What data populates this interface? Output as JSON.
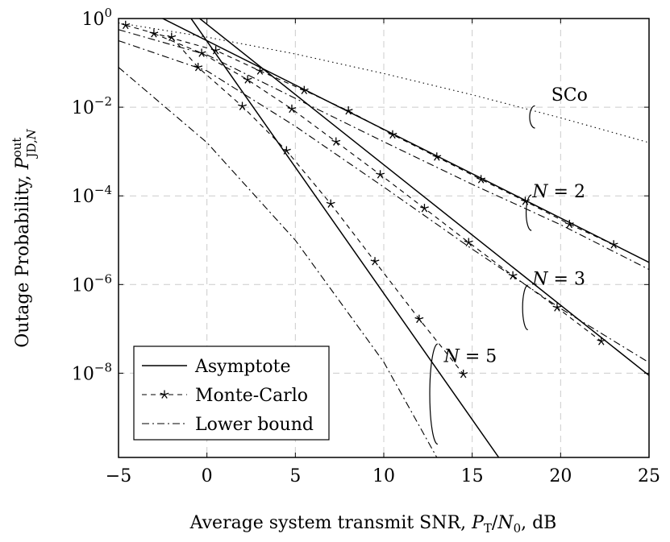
{
  "chart_data": {
    "type": "line",
    "xlabel": "Average system transmit SNR, P_T/N_0, dB",
    "xlabel_parts": {
      "prefix": "Average system transmit SNR, ",
      "p": "P",
      "p_sub": "T",
      "slash": "/",
      "n": "N",
      "n_sub": "0",
      "suffix": ", dB"
    },
    "ylabel": "Outage Probability, P_{JD,N}^{out}",
    "ylabel_parts": {
      "prefix": "Outage Probability, ",
      "p": "P",
      "sup": "out",
      "sub": "JD,",
      "sub_n": "N"
    },
    "xlim": [
      -5,
      25
    ],
    "ylim_log10": [
      -9.9,
      0
    ],
    "y_scale": "log",
    "grid": true,
    "x_ticks": [
      -5,
      0,
      5,
      10,
      15,
      20,
      25
    ],
    "x_tick_labels": [
      "−5",
      "0",
      "5",
      "10",
      "15",
      "20",
      "25"
    ],
    "y_ticks_log10": [
      0,
      -2,
      -4,
      -6,
      -8
    ],
    "y_tick_labels": [
      {
        "base": "10",
        "exp": "0"
      },
      {
        "base": "10",
        "exp": "−2"
      },
      {
        "base": "10",
        "exp": "−4"
      },
      {
        "base": "10",
        "exp": "−6"
      },
      {
        "base": "10",
        "exp": "−8"
      }
    ],
    "legend": {
      "position": "bottom-left",
      "entries": [
        {
          "label": "Asymptote",
          "style": "solid"
        },
        {
          "label": "Monte-Carlo",
          "style": "dashed-star"
        },
        {
          "label": "Lower bound",
          "style": "dashdot"
        }
      ]
    },
    "series": [
      {
        "name": "SCo",
        "style": "dotted",
        "x": [
          -5,
          0,
          5,
          10,
          15,
          20,
          25
        ],
        "log10_y": [
          -0.1,
          -0.42,
          -0.8,
          -1.24,
          -1.72,
          -2.24,
          -2.8
        ]
      },
      {
        "name": "Asymptote N=2",
        "style": "solid",
        "x": [
          -3,
          25
        ],
        "log10_y": [
          0.1,
          -5.5
        ]
      },
      {
        "name": "Asymptote N=3",
        "style": "solid",
        "x": [
          -0.6,
          25
        ],
        "log10_y": [
          0.06,
          -8.05
        ]
      },
      {
        "name": "Asymptote N=5",
        "style": "solid",
        "x": [
          -1.6,
          16.5
        ],
        "log10_y": [
          0.4,
          -9.9
        ]
      },
      {
        "name": "Monte-Carlo N=2",
        "style": "dashed-star",
        "x": [
          -4.6,
          0.5,
          3,
          5.5,
          8,
          10.5,
          13,
          15.5,
          18,
          20.5,
          23
        ],
        "log10_y": [
          -0.15,
          -0.72,
          -1.18,
          -1.62,
          -2.08,
          -2.62,
          -3.12,
          -3.63,
          -4.12,
          -4.64,
          -5.1
        ]
      },
      {
        "name": "Monte-Carlo N=3",
        "style": "dashed-star",
        "x": [
          -3,
          -0.3,
          2.3,
          4.8,
          7.3,
          9.8,
          12.3,
          14.8,
          17.3,
          19.8,
          22.3
        ],
        "log10_y": [
          -0.34,
          -0.78,
          -1.38,
          -2.04,
          -2.78,
          -3.52,
          -4.28,
          -5.05,
          -5.8,
          -6.52,
          -7.28
        ]
      },
      {
        "name": "Monte-Carlo N=5",
        "style": "dashed-star",
        "x": [
          -2,
          -0.5,
          2,
          4.5,
          7,
          9.5,
          12,
          14.5
        ],
        "log10_y": [
          -0.42,
          -1.1,
          -1.98,
          -2.98,
          -4.18,
          -5.48,
          -6.78,
          -8.02
        ]
      },
      {
        "name": "Lower bound N=2",
        "style": "dashdot",
        "x": [
          -5,
          0,
          5,
          10,
          15,
          20,
          25
        ],
        "log10_y": [
          -0.25,
          -0.82,
          -1.8,
          -2.78,
          -3.74,
          -4.65,
          -5.66
        ]
      },
      {
        "name": "Lower bound N=3",
        "style": "dashdot",
        "x": [
          -5,
          0,
          5,
          10,
          15,
          20,
          25
        ],
        "log10_y": [
          -0.5,
          -1.18,
          -2.43,
          -3.8,
          -5.2,
          -6.54,
          -7.76
        ]
      },
      {
        "name": "Lower bound N=5",
        "style": "dashdot",
        "x": [
          -5,
          0,
          5,
          10,
          13
        ],
        "log10_y": [
          -1.1,
          -2.8,
          -5.0,
          -7.75,
          -9.9
        ]
      }
    ],
    "annotations": [
      {
        "text": "SCo",
        "kind": "plain",
        "x": 20.5,
        "log10_y": -1.85,
        "ellipse_x": 18.55,
        "ellipse_log10_y": -2.22,
        "ellipse_rx": 0.3,
        "ellipse_ry_log": 0.25
      },
      {
        "text": "N = 2",
        "kind": "N",
        "n": "2",
        "x": 19.9,
        "log10_y": -4.03,
        "ellipse_x": 18.35,
        "ellipse_log10_y": -4.38,
        "ellipse_rx": 0.3,
        "ellipse_ry_log": 0.4
      },
      {
        "text": "N = 3",
        "kind": "N",
        "n": "3",
        "x": 19.9,
        "log10_y": -6.0,
        "ellipse_x": 18.15,
        "ellipse_log10_y": -6.52,
        "ellipse_rx": 0.3,
        "ellipse_ry_log": 0.5
      },
      {
        "text": "N = 5",
        "kind": "N",
        "n": "5",
        "x": 14.9,
        "log10_y": -7.75,
        "ellipse_x": 13.05,
        "ellipse_log10_y": -8.47,
        "ellipse_rx": 0.45,
        "ellipse_ry_log": 1.13
      }
    ]
  }
}
